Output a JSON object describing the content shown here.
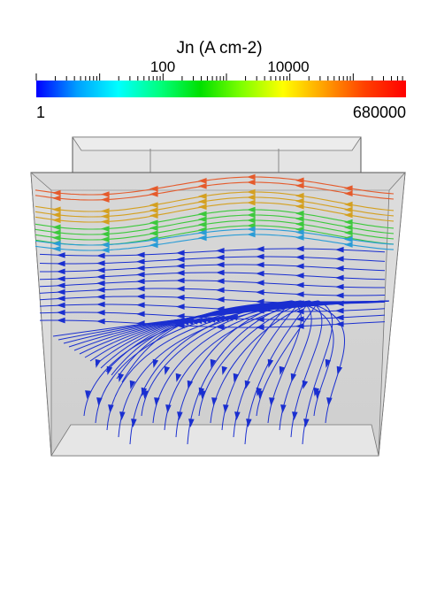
{
  "colorbar": {
    "title": "Jn (A cm-2)",
    "min_label": "1",
    "max_label": "680000",
    "tick_labels": [
      "100",
      "10000"
    ],
    "scale": "log",
    "min_value": 1,
    "max_value": 680000,
    "colormap": [
      "#0000ff",
      "#00a0ff",
      "#00ffff",
      "#00ff80",
      "#00e000",
      "#80ff00",
      "#ffff00",
      "#ffa000",
      "#ff4000",
      "#ff0000"
    ]
  },
  "scene": {
    "description_colors": {
      "volume": "#d2d2d2",
      "volume_edge": "#555555",
      "background": "#ffffff"
    },
    "streamline_bands": [
      {
        "name": "top-band",
        "color": "#e55a2b"
      },
      {
        "name": "upper-band",
        "color": "#d4a020"
      },
      {
        "name": "green-band",
        "color": "#3cc83c"
      },
      {
        "name": "cyan-band",
        "color": "#2a9cd6"
      },
      {
        "name": "low-band",
        "color": "#1a2fd0"
      }
    ]
  }
}
